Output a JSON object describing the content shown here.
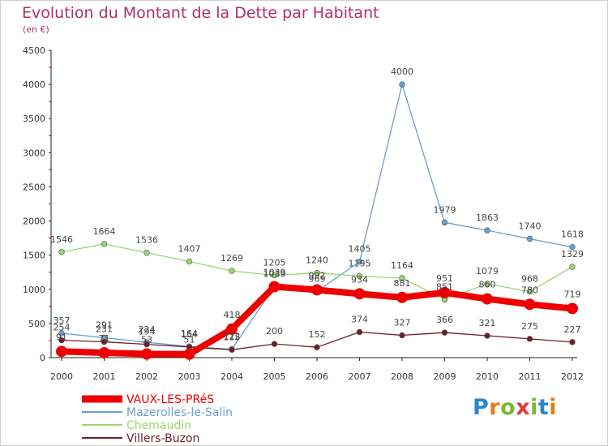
{
  "header": {
    "title": "Evolution du Montant de la Dette par Habitant",
    "unit": "(en €)"
  },
  "logo": {
    "text": "Proxiti",
    "letters": [
      "P",
      "r",
      "o",
      "x",
      "i",
      "t",
      "i"
    ],
    "colors": [
      "#2a86c8",
      "#e57d1e",
      "#7cb82f",
      "#e03a3a",
      "#7cb82f",
      "#2a86c8",
      "#e57d1e"
    ]
  },
  "chart_data": {
    "type": "line",
    "title": "Evolution du Montant de la Dette par Habitant",
    "ylabel": "(en €)",
    "xlabel": "",
    "ylim": [
      0,
      4500
    ],
    "yticks": [
      0,
      500,
      1000,
      1500,
      2000,
      2500,
      3000,
      3500,
      4000,
      4500
    ],
    "categories": [
      "2000",
      "2001",
      "2002",
      "2003",
      "2004",
      "2005",
      "2006",
      "2007",
      "2008",
      "2009",
      "2010",
      "2011",
      "2012"
    ],
    "grid": false,
    "legend": "bottom-left",
    "series": [
      {
        "name": "VAUX-LES-PRéS",
        "color": "#ee0000",
        "values": [
          91,
          71,
          53,
          51,
          418,
          1039,
          992,
          934,
          881,
          951,
          860,
          780,
          719
        ],
        "labels": [
          "91",
          "71",
          "53",
          "51",
          "418",
          "1039",
          "992",
          "934",
          "881",
          "951",
          "860",
          "780",
          "719"
        ]
      },
      {
        "name": "Mazerolles-le-Salin",
        "color": "#6a9fd0",
        "values": [
          357,
          291,
          224,
          164,
          122,
          1039,
          969,
          1405,
          4000,
          1979,
          1863,
          1740,
          1618
        ],
        "labels": [
          "357",
          "291",
          "224",
          "164",
          "122",
          "1039",
          "969",
          "1405",
          "4000",
          "1979",
          "1863",
          "1740",
          "1618"
        ]
      },
      {
        "name": "Chemaudin",
        "color": "#9bd572",
        "values": [
          1546,
          1664,
          1536,
          1407,
          1269,
          1205,
          1240,
          1195,
          1164,
          851,
          1079,
          968,
          1329
        ],
        "labels": [
          "1546",
          "1664",
          "1536",
          "1407",
          "1269",
          "1205",
          "1240",
          "1195",
          "1164",
          "851",
          "1079",
          "968",
          "1329"
        ]
      },
      {
        "name": "Villers-Buzon",
        "color": "#6b1f2a",
        "values": [
          254,
          231,
          194,
          154,
          115,
          200,
          152,
          374,
          327,
          366,
          321,
          275,
          227
        ],
        "labels": [
          "254",
          "231",
          "194",
          "154",
          "115",
          "200",
          "152",
          "374",
          "327",
          "366",
          "321",
          "275",
          "227"
        ]
      }
    ]
  }
}
